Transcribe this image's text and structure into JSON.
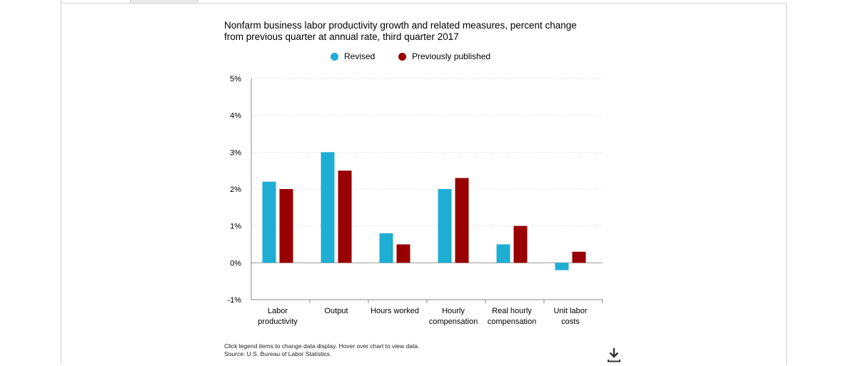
{
  "chart_data": {
    "type": "bar",
    "title_line1": "Nonfarm business labor productivity growth and related measures, percent change",
    "title_line2": "from previous quarter at annual rate, third quarter 2017",
    "categories": [
      [
        "Labor",
        "productivity"
      ],
      [
        "Output"
      ],
      [
        "Hours worked"
      ],
      [
        "Hourly",
        "compensation"
      ],
      [
        "Real hourly",
        "compensation"
      ],
      [
        "Unit labor",
        "costs"
      ]
    ],
    "series": [
      {
        "name": "Revised",
        "color": "#1eaed4",
        "values": [
          2.2,
          3.0,
          0.8,
          2.0,
          0.5,
          -0.2
        ]
      },
      {
        "name": "Previously published",
        "color": "#990000",
        "values": [
          2.0,
          2.5,
          0.5,
          2.3,
          1.0,
          0.3
        ]
      }
    ],
    "ylim": [
      -1,
      5
    ],
    "yticks": [
      "-1%",
      "0%",
      "1%",
      "2%",
      "3%",
      "4%",
      "5%"
    ],
    "ytick_values": [
      -1,
      0,
      1,
      2,
      3,
      4,
      5
    ],
    "grid": true,
    "legend_position": "top-center"
  },
  "notes": {
    "line1": "Click legend items to change data display. Hover over chart to view data.",
    "line2": "Source: U.S. Bureau of Labor Statistics."
  },
  "icons": {
    "download": "download-icon"
  }
}
